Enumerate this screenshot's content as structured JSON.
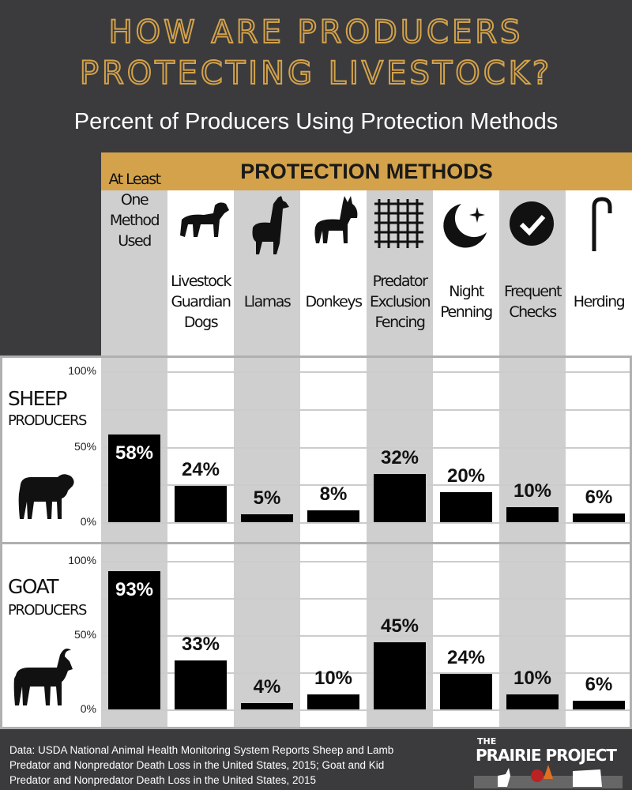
{
  "title": {
    "line1": "HOW ARE PRODUCERS",
    "line2": "PROTECTING LIVESTOCK?",
    "subtitle": "Percent of Producers Using Protection Methods"
  },
  "header": "PROTECTION METHODS",
  "chart_data": [
    {
      "type": "bar",
      "title": "SHEEP PRODUCERS",
      "label_line1": "SHEEP",
      "label_line2": "PRODUCERS",
      "categories": [
        "At Least One Method Used",
        "Livestock Guardian Dogs",
        "Llamas",
        "Donkeys",
        "Predator Exclusion Fencing",
        "Night Penning",
        "Frequent Checks",
        "Herding"
      ],
      "values": [
        58,
        24,
        5,
        8,
        32,
        20,
        10,
        6
      ],
      "ylim": [
        0,
        100
      ],
      "yticks": [
        "0%",
        "50%",
        "100%"
      ],
      "grid": true
    },
    {
      "type": "bar",
      "title": "GOAT PRODUCERS",
      "label_line1": "GOAT",
      "label_line2": "PRODUCERS",
      "categories": [
        "At Least One Method Used",
        "Livestock Guardian Dogs",
        "Llamas",
        "Donkeys",
        "Predator Exclusion Fencing",
        "Night Penning",
        "Frequent Checks",
        "Herding"
      ],
      "values": [
        93,
        33,
        4,
        10,
        45,
        24,
        10,
        6
      ],
      "ylim": [
        0,
        100
      ],
      "yticks": [
        "0%",
        "50%",
        "100%"
      ],
      "grid": true
    }
  ],
  "methods": [
    {
      "lines": [
        "At Least",
        "One",
        "Method",
        "Used"
      ],
      "icon": "none"
    },
    {
      "lines": [
        "Livestock",
        "Guardian",
        "Dogs"
      ],
      "icon": "dog-icon"
    },
    {
      "lines": [
        "Llamas"
      ],
      "icon": "llama-icon"
    },
    {
      "lines": [
        "Donkeys"
      ],
      "icon": "donkey-icon"
    },
    {
      "lines": [
        "Predator",
        "Exclusion",
        "Fencing"
      ],
      "icon": "fence-grid-icon"
    },
    {
      "lines": [
        "Night",
        "Penning"
      ],
      "icon": "moon-star-icon"
    },
    {
      "lines": [
        "Frequent",
        "Checks"
      ],
      "icon": "check-circle-icon"
    },
    {
      "lines": [
        "Herding"
      ],
      "icon": "shepherd-crook-icon"
    }
  ],
  "colors": {
    "background": "#3b3b3d",
    "gold": "#d4a24a",
    "bar": "#000000",
    "shade": "#cfcfcf"
  },
  "footer": "Data: USDA National Animal Health Monitoring System Reports Sheep and Lamb Predator and Nonpredator Death Loss in the United States, 2015; Goat and Kid Predator and Nonpredator Death Loss in the United States, 2015",
  "logo": {
    "the": "THE",
    "name": "PRAIRIE PROJECT"
  }
}
